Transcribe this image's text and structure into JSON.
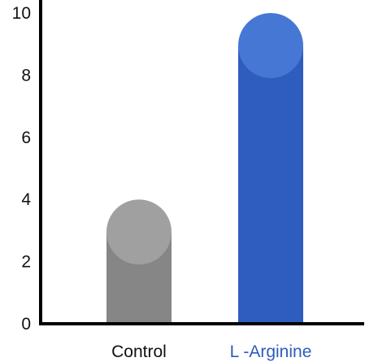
{
  "chart_data": {
    "type": "bar",
    "title": "",
    "xlabel": "",
    "ylabel": "",
    "categories": [
      "Control",
      "L -Arginine"
    ],
    "values": [
      4,
      10
    ],
    "ylim": [
      0,
      10
    ],
    "yticks": [
      "0",
      "2",
      "4",
      "6",
      "8",
      "10"
    ],
    "bar_colors": [
      "#868686",
      "#2e5cbf"
    ],
    "cap_colors": [
      "#a0a0a0",
      "#4677d4"
    ],
    "label_colors": [
      "#111111",
      "#2e5cbf"
    ],
    "axis_color": "#000000",
    "grid": false,
    "legend": "none"
  }
}
